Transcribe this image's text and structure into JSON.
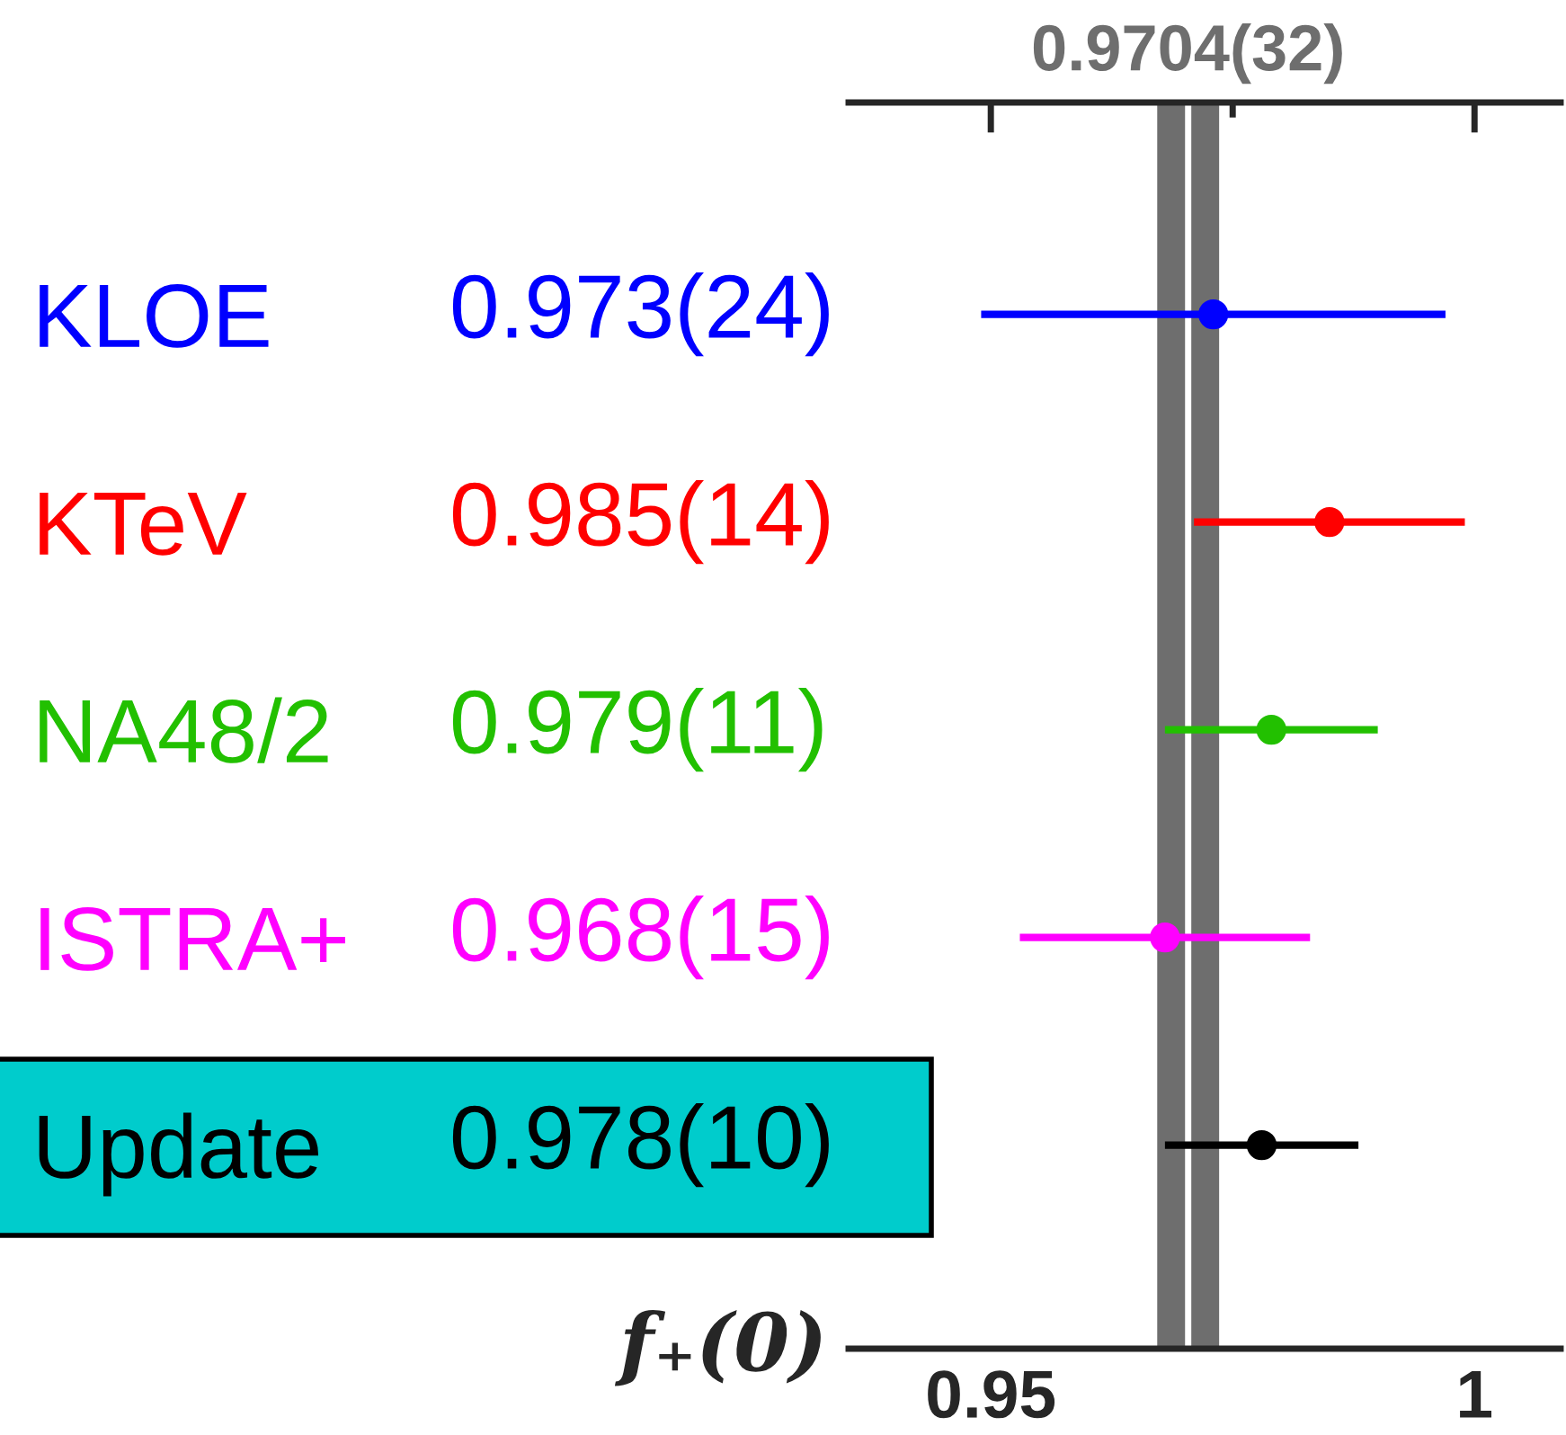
{
  "chart_data": {
    "type": "scatter",
    "orientation": "horizontal",
    "categories": [
      "KLOE",
      "KTeV",
      "NA48/2",
      "ISTRA+",
      "Update"
    ],
    "values": [
      0.973,
      0.985,
      0.979,
      0.968,
      0.978
    ],
    "errors": [
      0.024,
      0.014,
      0.011,
      0.015,
      0.01
    ],
    "colors": [
      "#0000ff",
      "#ff0000",
      "#22c000",
      "#ff00ff",
      "#000000"
    ],
    "value_labels": [
      "0.973(24)",
      "0.985(14)",
      "0.979(11)",
      "0.968(15)",
      "0.978(10)"
    ],
    "xlabel": "f₊(0)",
    "xlim": [
      0.9353,
      1.0089
    ],
    "xticks": [
      0.95,
      {
        "value": 0.975,
        "label": null
      },
      1
    ],
    "bands": [
      {
        "axis": "x",
        "from": 0.9672,
        "to": 0.9736,
        "label": "0.9704(32)",
        "color": "#6e6e6e"
      }
    ],
    "ref_lines": [
      {
        "axis": "x",
        "value": 0.9704,
        "color": "#ffffff",
        "line_style": "solid"
      }
    ],
    "marker": "circle",
    "legend": false,
    "grid": false
  }
}
